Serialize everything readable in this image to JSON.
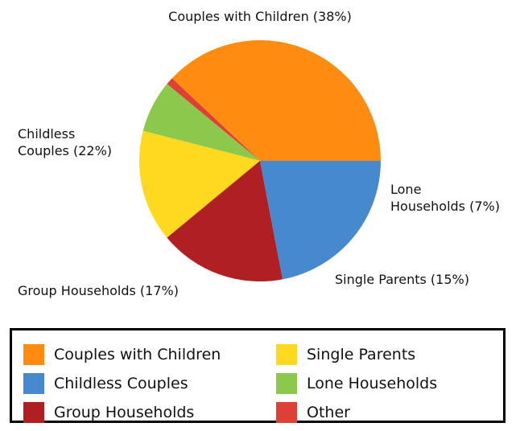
{
  "chart_data": {
    "type": "pie",
    "slices": [
      {
        "name": "Couples with Children",
        "value": 38,
        "label_lines": [
          "Couples with Children (38%)"
        ],
        "color": "#FF8C11"
      },
      {
        "name": "Other",
        "value": 1,
        "label_lines": [],
        "color": "#DF4035"
      },
      {
        "name": "Lone Households",
        "value": 7,
        "label_lines": [
          "Lone",
          "Households (7%)"
        ],
        "color": "#8CC84B"
      },
      {
        "name": "Single Parents",
        "value": 15,
        "label_lines": [
          "Single Parents (15%)"
        ],
        "color": "#FFD91F"
      },
      {
        "name": "Group Households",
        "value": 17,
        "label_lines": [
          "Group Households (17%)"
        ],
        "color": "#B01F22"
      },
      {
        "name": "Childless Couples",
        "value": 22,
        "label_lines": [
          "Childless",
          "Couples (22%)"
        ],
        "color": "#4689CF"
      }
    ],
    "legend": {
      "position": "bottom",
      "items": [
        {
          "label": "Couples with Children",
          "color": "#FF8C11"
        },
        {
          "label": "Single Parents",
          "color": "#FFD91F"
        },
        {
          "label": "Childless Couples",
          "color": "#4689CF"
        },
        {
          "label": "Lone Households",
          "color": "#8CC84B"
        },
        {
          "label": "Group Households",
          "color": "#B01F22"
        },
        {
          "label": "Other",
          "color": "#DF4035"
        }
      ]
    }
  }
}
